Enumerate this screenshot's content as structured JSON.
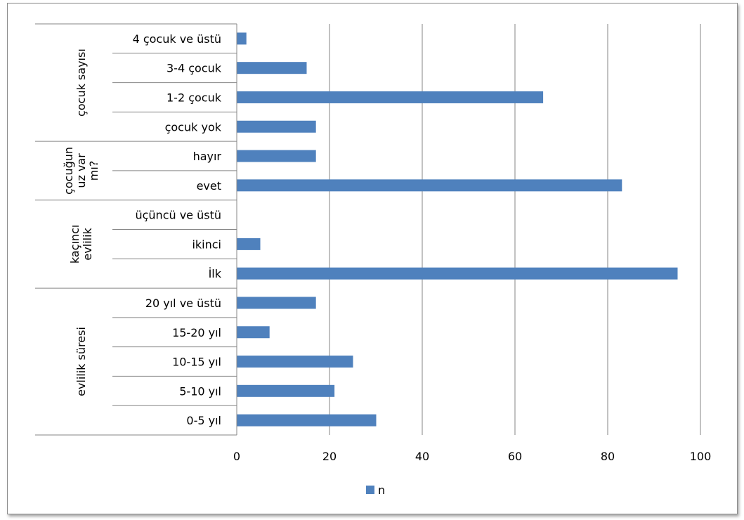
{
  "chart_data": {
    "type": "bar",
    "orientation": "horizontal",
    "groups": [
      {
        "label": "evlilik süresi",
        "label_lines": [
          "evlilik süresi"
        ],
        "categories": [
          "0-5 yıl",
          "5-10 yıl",
          "10-15 yıl",
          "15-20 yıl",
          "20 yıl ve üstü"
        ]
      },
      {
        "label": "kaçıncı evlilik",
        "label_lines": [
          "kaçıncı",
          "evlilik"
        ],
        "categories": [
          "İlk",
          "ikinci",
          "üçüncü ve üstü"
        ]
      },
      {
        "label": "çocuğun uz var mı?",
        "label_lines": [
          "çocuğun",
          "uz var",
          "mı?"
        ],
        "categories": [
          "evet",
          "hayır"
        ]
      },
      {
        "label": "çocuk sayısı",
        "label_lines": [
          "çocuk sayısı"
        ],
        "categories": [
          "çocuk yok",
          "1-2 çocuk",
          "3-4 çocuk",
          "4 çocuk ve üstü"
        ]
      }
    ],
    "categories": [
      "0-5 yıl",
      "5-10 yıl",
      "10-15 yıl",
      "15-20 yıl",
      "20 yıl ve üstü",
      "İlk",
      "ikinci",
      "üçüncü ve üstü",
      "evet",
      "hayır",
      "çocuk yok",
      "1-2 çocuk",
      "3-4 çocuk",
      "4 çocuk ve üstü"
    ],
    "series": [
      {
        "name": "n",
        "color": "#4f81bd",
        "values": [
          30,
          21,
          25,
          7,
          17,
          95,
          5,
          0,
          83,
          17,
          17,
          66,
          15,
          2
        ]
      }
    ],
    "xlim": [
      0,
      100
    ],
    "xticks": [
      0,
      20,
      40,
      60,
      80,
      100
    ],
    "grid": true,
    "legend": "bottom"
  }
}
